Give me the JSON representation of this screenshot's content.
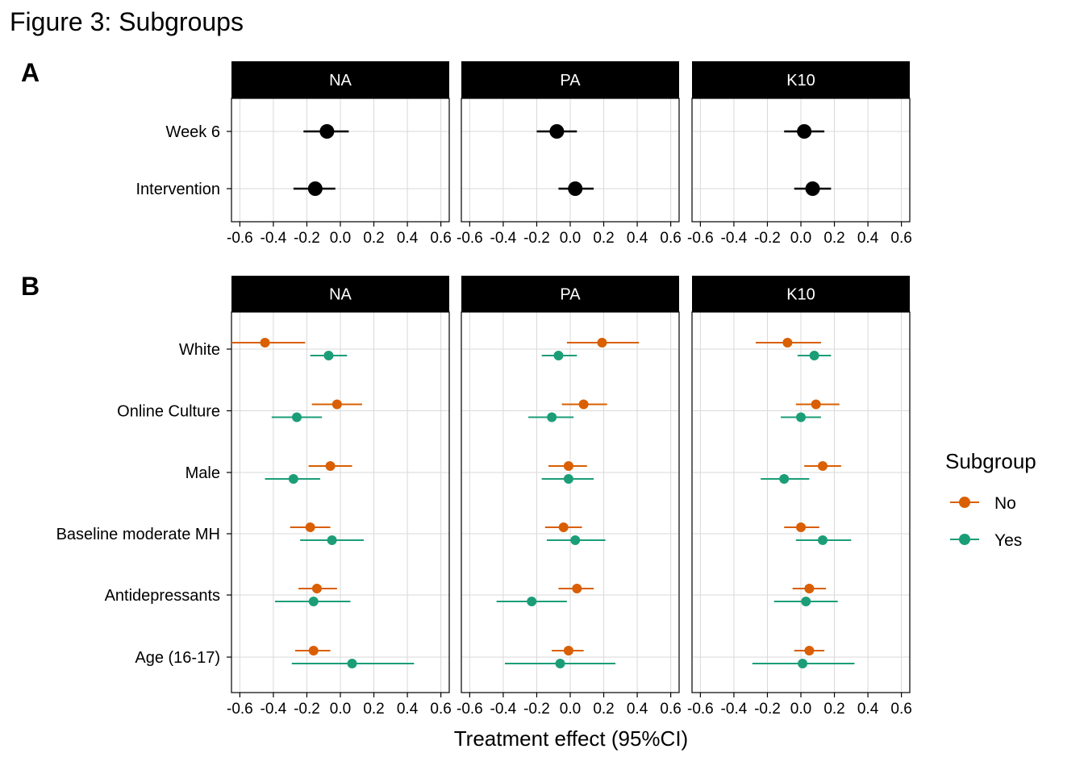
{
  "figure": {
    "title": "Figure 3: Subgroups",
    "panel_a_letter": "A",
    "panel_b_letter": "B",
    "xlabel": "Treatment effect (95%CI)"
  },
  "legend": {
    "title": "Subgroup",
    "items": [
      {
        "label": "No",
        "color": "#D95F02"
      },
      {
        "label": "Yes",
        "color": "#1B9E77"
      }
    ]
  },
  "chart_data": [
    {
      "type": "scatter",
      "subtype": "forest-plot",
      "panel": "A",
      "facets": [
        "NA",
        "PA",
        "K10"
      ],
      "xlim": [
        -0.65,
        0.65
      ],
      "xticks": [
        -0.6,
        -0.4,
        -0.2,
        0.0,
        0.2,
        0.4,
        0.6
      ],
      "xtick_labels": [
        "-0.6",
        "-0.4",
        "-0.2",
        "0.0",
        "0.2",
        "0.4",
        "0.6"
      ],
      "categories": [
        "Week 6",
        "Intervention"
      ],
      "point_color": "#000000",
      "grid": true,
      "estimates": {
        "NA": [
          {
            "category": "Week 6",
            "est": -0.08,
            "lo": -0.22,
            "hi": 0.05
          },
          {
            "category": "Intervention",
            "est": -0.15,
            "lo": -0.28,
            "hi": -0.03
          }
        ],
        "PA": [
          {
            "category": "Week 6",
            "est": -0.08,
            "lo": -0.2,
            "hi": 0.04
          },
          {
            "category": "Intervention",
            "est": 0.03,
            "lo": -0.07,
            "hi": 0.14
          }
        ],
        "K10": [
          {
            "category": "Week 6",
            "est": 0.02,
            "lo": -0.1,
            "hi": 0.14
          },
          {
            "category": "Intervention",
            "est": 0.07,
            "lo": -0.04,
            "hi": 0.18
          }
        ]
      }
    },
    {
      "type": "scatter",
      "subtype": "forest-plot",
      "panel": "B",
      "facets": [
        "NA",
        "PA",
        "K10"
      ],
      "xlim": [
        -0.65,
        0.65
      ],
      "xticks": [
        -0.6,
        -0.4,
        -0.2,
        0.0,
        0.2,
        0.4,
        0.6
      ],
      "xtick_labels": [
        "-0.6",
        "-0.4",
        "-0.2",
        "0.0",
        "0.2",
        "0.4",
        "0.6"
      ],
      "categories": [
        "White",
        "Online Culture",
        "Male",
        "Baseline moderate MH",
        "Antidepressants",
        "Age (16-17)"
      ],
      "series_names": [
        "No",
        "Yes"
      ],
      "grid": true,
      "legend_position": "right",
      "estimates": {
        "NA": [
          {
            "category": "White",
            "No": {
              "est": -0.45,
              "lo": -0.65,
              "hi": -0.21
            },
            "Yes": {
              "est": -0.07,
              "lo": -0.18,
              "hi": 0.04
            }
          },
          {
            "category": "Online Culture",
            "No": {
              "est": -0.02,
              "lo": -0.17,
              "hi": 0.13
            },
            "Yes": {
              "est": -0.26,
              "lo": -0.41,
              "hi": -0.11
            }
          },
          {
            "category": "Male",
            "No": {
              "est": -0.06,
              "lo": -0.19,
              "hi": 0.07
            },
            "Yes": {
              "est": -0.28,
              "lo": -0.45,
              "hi": -0.12
            }
          },
          {
            "category": "Baseline moderate MH",
            "No": {
              "est": -0.18,
              "lo": -0.3,
              "hi": -0.06
            },
            "Yes": {
              "est": -0.05,
              "lo": -0.24,
              "hi": 0.14
            }
          },
          {
            "category": "Antidepressants",
            "No": {
              "est": -0.14,
              "lo": -0.25,
              "hi": -0.02
            },
            "Yes": {
              "est": -0.16,
              "lo": -0.39,
              "hi": 0.06
            }
          },
          {
            "category": "Age (16-17)",
            "No": {
              "est": -0.16,
              "lo": -0.27,
              "hi": -0.06
            },
            "Yes": {
              "est": 0.07,
              "lo": -0.29,
              "hi": 0.44
            }
          }
        ],
        "PA": [
          {
            "category": "White",
            "No": {
              "est": 0.19,
              "lo": -0.02,
              "hi": 0.41
            },
            "Yes": {
              "est": -0.07,
              "lo": -0.17,
              "hi": 0.04
            }
          },
          {
            "category": "Online Culture",
            "No": {
              "est": 0.08,
              "lo": -0.05,
              "hi": 0.22
            },
            "Yes": {
              "est": -0.11,
              "lo": -0.25,
              "hi": 0.02
            }
          },
          {
            "category": "Male",
            "No": {
              "est": -0.01,
              "lo": -0.13,
              "hi": 0.1
            },
            "Yes": {
              "est": -0.01,
              "lo": -0.17,
              "hi": 0.14
            }
          },
          {
            "category": "Baseline moderate MH",
            "No": {
              "est": -0.04,
              "lo": -0.15,
              "hi": 0.07
            },
            "Yes": {
              "est": 0.03,
              "lo": -0.14,
              "hi": 0.21
            }
          },
          {
            "category": "Antidepressants",
            "No": {
              "est": 0.04,
              "lo": -0.07,
              "hi": 0.14
            },
            "Yes": {
              "est": -0.23,
              "lo": -0.44,
              "hi": -0.02
            }
          },
          {
            "category": "Age (16-17)",
            "No": {
              "est": -0.01,
              "lo": -0.11,
              "hi": 0.08
            },
            "Yes": {
              "est": -0.06,
              "lo": -0.39,
              "hi": 0.27
            }
          }
        ],
        "K10": [
          {
            "category": "White",
            "No": {
              "est": -0.08,
              "lo": -0.27,
              "hi": 0.12
            },
            "Yes": {
              "est": 0.08,
              "lo": -0.02,
              "hi": 0.18
            }
          },
          {
            "category": "Online Culture",
            "No": {
              "est": 0.09,
              "lo": -0.03,
              "hi": 0.23
            },
            "Yes": {
              "est": 0.0,
              "lo": -0.12,
              "hi": 0.12
            }
          },
          {
            "category": "Male",
            "No": {
              "est": 0.13,
              "lo": 0.02,
              "hi": 0.24
            },
            "Yes": {
              "est": -0.1,
              "lo": -0.24,
              "hi": 0.05
            }
          },
          {
            "category": "Baseline moderate MH",
            "No": {
              "est": 0.0,
              "lo": -0.1,
              "hi": 0.11
            },
            "Yes": {
              "est": 0.13,
              "lo": -0.03,
              "hi": 0.3
            }
          },
          {
            "category": "Antidepressants",
            "No": {
              "est": 0.05,
              "lo": -0.05,
              "hi": 0.15
            },
            "Yes": {
              "est": 0.03,
              "lo": -0.16,
              "hi": 0.22
            }
          },
          {
            "category": "Age (16-17)",
            "No": {
              "est": 0.05,
              "lo": -0.04,
              "hi": 0.14
            },
            "Yes": {
              "est": 0.01,
              "lo": -0.29,
              "hi": 0.32
            }
          }
        ]
      }
    }
  ]
}
